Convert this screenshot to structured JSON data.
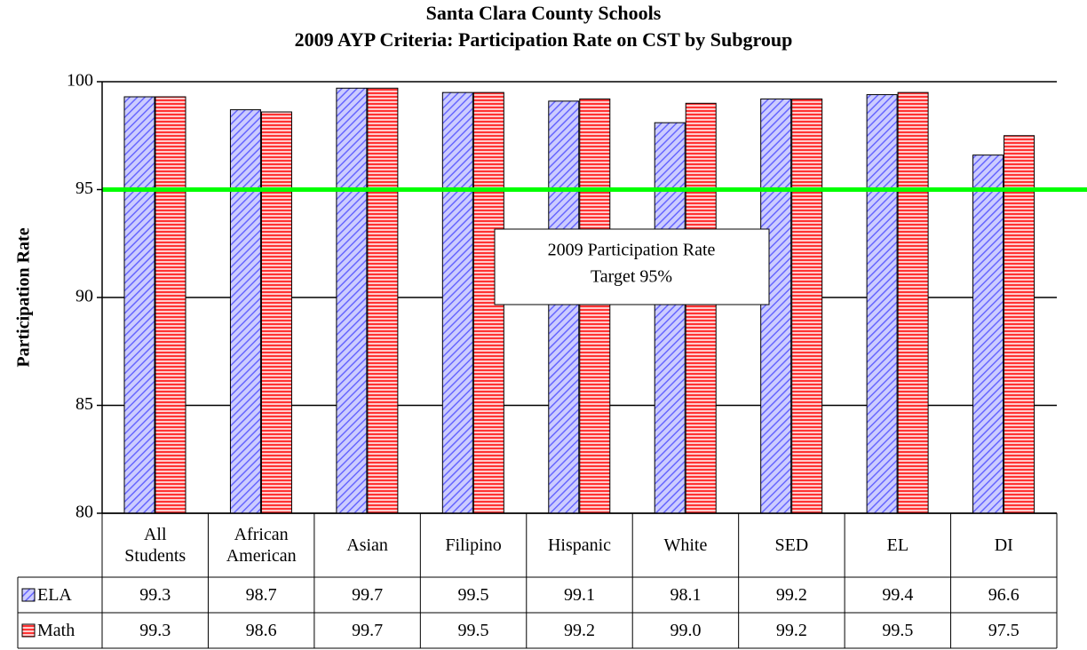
{
  "chart_data": {
    "type": "bar",
    "title": "Santa Clara County Schools",
    "subtitle": "2009 AYP Criteria: Participation Rate on CST by Subgroup",
    "y_label": "Participation Rate",
    "categories": [
      "All Students",
      "African American",
      "Asian",
      "Filipino",
      "Hispanic",
      "White",
      "SED",
      "EL",
      "DI"
    ],
    "series": [
      {
        "name": "ELA",
        "color": "#9999ff",
        "pattern": "diagonal",
        "values": [
          99.3,
          98.7,
          99.7,
          99.5,
          99.1,
          98.1,
          99.2,
          99.4,
          96.6
        ],
        "value_labels": [
          "99.3",
          "98.7",
          "99.7",
          "99.5",
          "99.1",
          "98.1",
          "99.2",
          "99.4",
          "96.6"
        ]
      },
      {
        "name": "Math",
        "color": "#ff3333",
        "pattern": "horizontal",
        "values": [
          99.3,
          98.6,
          99.7,
          99.5,
          99.2,
          99.0,
          99.2,
          99.5,
          97.5
        ],
        "value_labels": [
          "99.3",
          "98.6",
          "99.7",
          "99.5",
          "99.2",
          "99.0",
          "99.2",
          "99.5",
          "97.5"
        ]
      }
    ],
    "ylim": [
      80,
      100
    ],
    "yticks": [
      80,
      85,
      90,
      95,
      100
    ],
    "grid": true,
    "reference_line": {
      "value": 95,
      "color": "#00ff00"
    },
    "annotation": [
      "2009 Participation Rate",
      "Target 95%"
    ]
  }
}
